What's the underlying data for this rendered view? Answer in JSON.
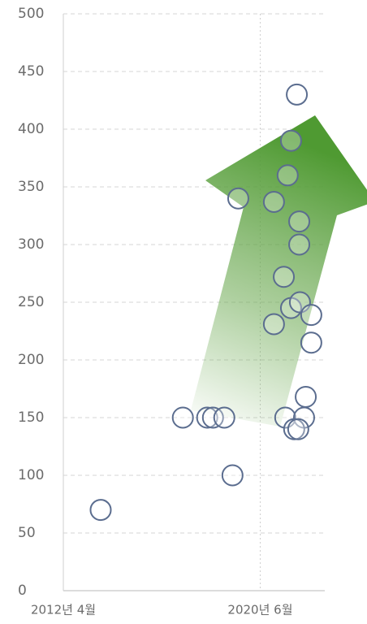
{
  "chart_data": {
    "type": "scatter",
    "x": [
      2013.8,
      2017.21,
      2018.22,
      2018.46,
      2018.93,
      2019.27,
      2019.51,
      2020.99,
      2021.94,
      2021.7,
      2021.56,
      2022.04,
      2022.04,
      2021.4,
      2020.99,
      2021.7,
      2022.07,
      2022.54,
      2022.54,
      2022.31,
      2021.46,
      2022.24,
      2021.83,
      2022.0
    ],
    "values": [
      70,
      150,
      150,
      150,
      150,
      100,
      340,
      337,
      430,
      390,
      360,
      320,
      300,
      272,
      231,
      245,
      250,
      239,
      215,
      168,
      150,
      150,
      140,
      140
    ],
    "color": "#5b6d8f",
    "xlim": [
      2012.25,
      2023.1
    ],
    "xticks": [
      {
        "value": 2012.25,
        "label": "2012년 4월"
      },
      {
        "value": 2020.42,
        "label": "2020년 6월"
      }
    ],
    "ylim": [
      0,
      500
    ],
    "yticks": [
      0,
      50,
      100,
      150,
      200,
      250,
      300,
      350,
      400,
      450,
      500
    ],
    "grid": true
  }
}
